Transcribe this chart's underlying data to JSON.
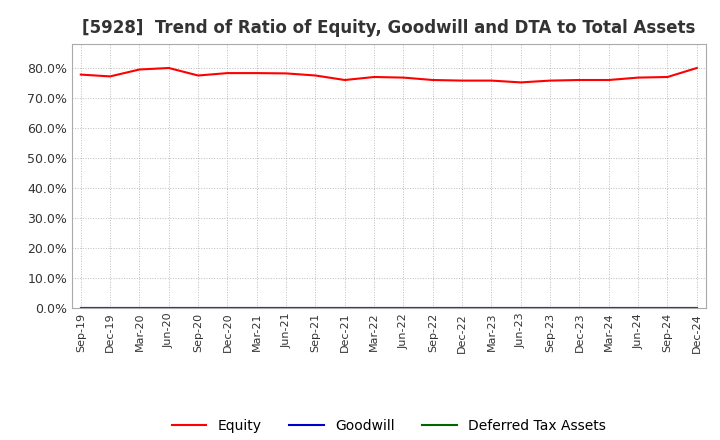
{
  "title": "[5928]  Trend of Ratio of Equity, Goodwill and DTA to Total Assets",
  "title_fontsize": 12,
  "ylim": [
    0.0,
    0.88
  ],
  "yticks": [
    0.0,
    0.1,
    0.2,
    0.3,
    0.4,
    0.5,
    0.6,
    0.7,
    0.8
  ],
  "ytick_labels": [
    "0.0%",
    "10.0%",
    "20.0%",
    "30.0%",
    "40.0%",
    "50.0%",
    "60.0%",
    "70.0%",
    "80.0%"
  ],
  "x_labels": [
    "Sep-19",
    "Dec-19",
    "Mar-20",
    "Jun-20",
    "Sep-20",
    "Dec-20",
    "Mar-21",
    "Jun-21",
    "Sep-21",
    "Dec-21",
    "Mar-22",
    "Jun-22",
    "Sep-22",
    "Dec-22",
    "Mar-23",
    "Jun-23",
    "Sep-23",
    "Dec-23",
    "Mar-24",
    "Jun-24",
    "Sep-24",
    "Dec-24"
  ],
  "equity": [
    0.778,
    0.772,
    0.795,
    0.8,
    0.775,
    0.783,
    0.783,
    0.782,
    0.775,
    0.76,
    0.77,
    0.768,
    0.76,
    0.758,
    0.758,
    0.752,
    0.758,
    0.76,
    0.76,
    0.768,
    0.77,
    0.8
  ],
  "goodwill": [
    0.0,
    0.0,
    0.0,
    0.0,
    0.0,
    0.0,
    0.0,
    0.0,
    0.0,
    0.0,
    0.0,
    0.0,
    0.0,
    0.0,
    0.0,
    0.0,
    0.0,
    0.0,
    0.0,
    0.0,
    0.0,
    0.0
  ],
  "dta": [
    0.0,
    0.0,
    0.0,
    0.0,
    0.0,
    0.0,
    0.0,
    0.0,
    0.0,
    0.0,
    0.0,
    0.0,
    0.0,
    0.0,
    0.0,
    0.0,
    0.0,
    0.0,
    0.0,
    0.0,
    0.0,
    0.0
  ],
  "equity_color": "#ff0000",
  "goodwill_color": "#0000cc",
  "dta_color": "#006600",
  "background_color": "#ffffff",
  "plot_bg_color": "#ffffff",
  "grid_color": "#aaaaaa",
  "spine_color": "#aaaaaa",
  "legend_labels": [
    "Equity",
    "Goodwill",
    "Deferred Tax Assets"
  ]
}
